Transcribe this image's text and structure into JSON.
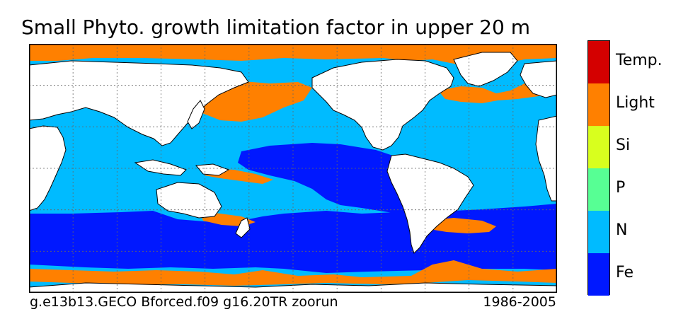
{
  "title": "Small Phyto. growth limitation factor in upper 20 m",
  "caption_left": "g.e13b13.GECO Bforced.f09 g16.20TR zoorun",
  "caption_right": "1986-2005",
  "legend": {
    "categories": [
      {
        "label": "Temp.",
        "color": "#d40000"
      },
      {
        "label": "Light",
        "color": "#ff8000"
      },
      {
        "label": "Si",
        "color": "#d8ff1e"
      },
      {
        "label": "P",
        "color": "#57ff94"
      },
      {
        "label": "N",
        "color": "#00bbff"
      },
      {
        "label": "Fe",
        "color": "#0018ff"
      }
    ]
  },
  "colors": {
    "land": "#ffffff",
    "coast": "#000000",
    "grid": "#666666"
  },
  "grid": {
    "lon_lines": 12,
    "lat_lines": 5
  }
}
